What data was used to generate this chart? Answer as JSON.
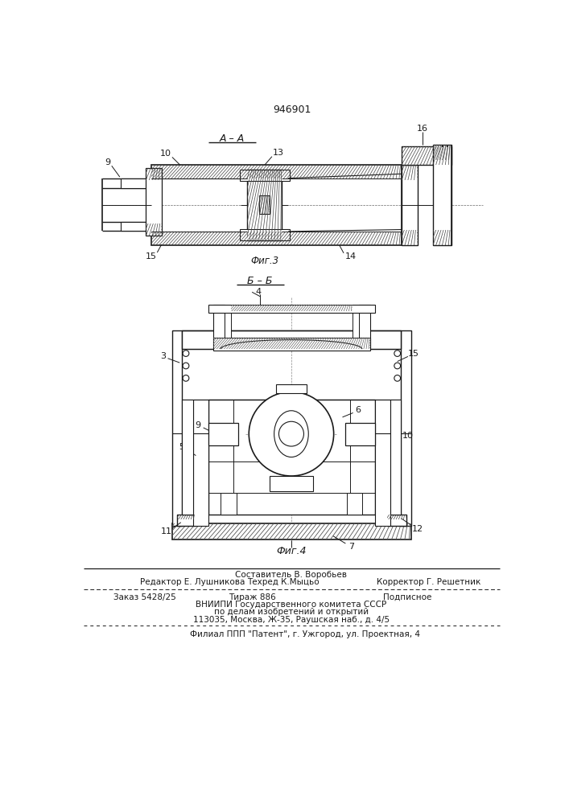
{
  "patent_number": "946901",
  "bg_color": "#ffffff",
  "fig_width": 7.07,
  "fig_height": 10.0,
  "dpi": 100,
  "section_label_AA": "A – A",
  "section_label_BB": "Б – Б",
  "fig3_label": "Фиг.3",
  "fig4_label": "Фиг.4",
  "footer_line1_left": "Редактор Е. Лушникова",
  "footer_line1_center_top": "Составитель В. Воробьев",
  "footer_line1_center": "Техред К.Мыцьо",
  "footer_line1_right": "Корректор Г. Решетник",
  "footer_line2_left": "Заказ 5428/25",
  "footer_line2_center": "Тираж 886",
  "footer_line2_right": "Подписное",
  "footer_line3": "ВНИИПИ Государственного комитета СССР",
  "footer_line4": "по делам изобретений и открытий",
  "footer_line5": "113035, Москва, Ж-35, Раушская наб., д. 4/5",
  "footer_line6": "Филиал ППП \"Патент\", г. Ужгород, ул. Проектная, 4",
  "line_color": "#1a1a1a",
  "text_color": "#1a1a1a"
}
